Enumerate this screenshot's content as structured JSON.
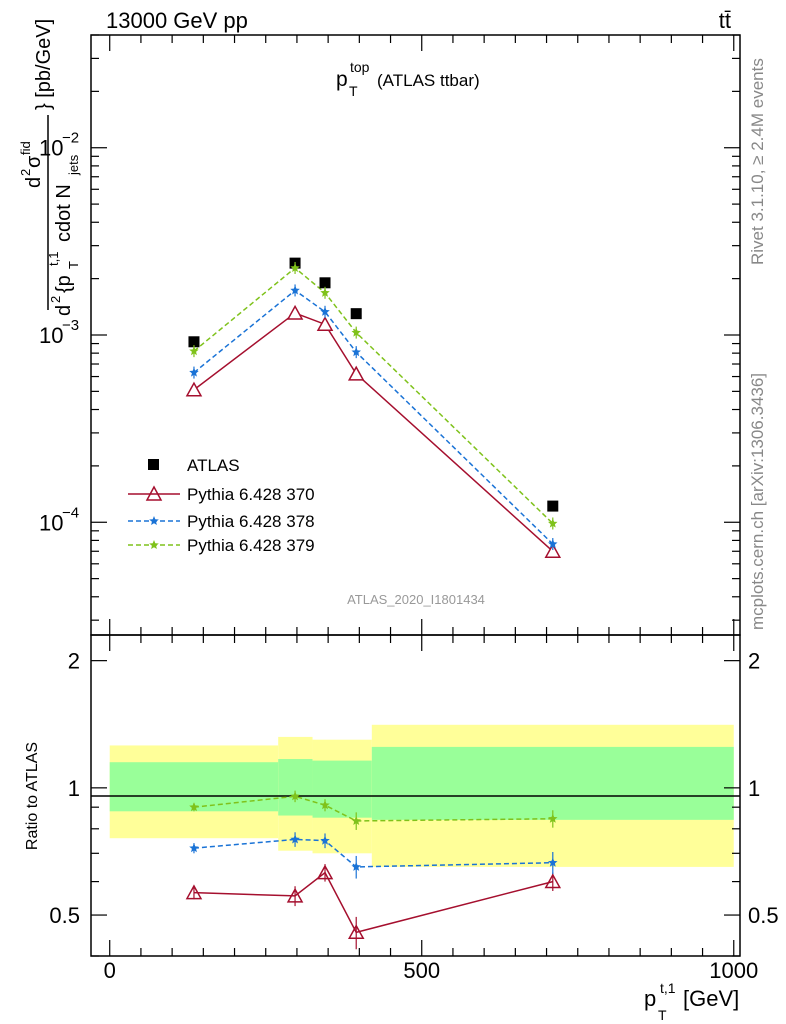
{
  "header": {
    "energy_label": "13000 GeV pp",
    "process_label": "tt̄"
  },
  "side_labels": {
    "rivet": "Rivet 3.1.10, ≥ 2.4M events",
    "mcplots": "mcplots.cern.ch [arXiv:1306.3436]"
  },
  "chart_data": [
    {
      "type": "scatter",
      "title": "p_T^top (ATLAS ttbar)",
      "title_main": "p",
      "title_sup": "top",
      "title_sub": "T",
      "title_rest": "(ATLAS ttbar)",
      "watermark": "ATLAS_2020_I1801434",
      "xlabel": "p_T^t,1 [GeV]",
      "ylabel": "d^2σ^fid / d^2{p_T^t,1 cdot N_jets} [pb/GeV]",
      "ylabel_parts": {
        "numerator_main": "d",
        "numerator_sup": "2",
        "numerator_sigma": "σ",
        "numerator_sigma_sup": "fid",
        "denominator": "d",
        "denominator_sup": "2",
        "denominator_brace": "{p",
        "denominator_pt_sup": "t,1",
        "denominator_pt_sub": "T",
        "denominator_rest": "cdot N",
        "denominator_jets_sub": "jets",
        "unit": "} [pb/GeV]"
      },
      "log_y": true,
      "xlim": [
        -30,
        1010
      ],
      "ylim": [
        2.5e-05,
        0.04
      ],
      "ytick_labels": [
        {
          "base": "10",
          "exp": "−2",
          "value": 0.01
        },
        {
          "base": "10",
          "exp": "−3",
          "value": 0.001
        },
        {
          "base": "10",
          "exp": "−4",
          "value": 0.0001
        }
      ],
      "x": [
        135,
        297,
        345,
        395,
        710
      ],
      "series": [
        {
          "name": "ATLAS",
          "color": "#000000",
          "marker": "square",
          "line": "none",
          "values": [
            0.00092,
            0.00242,
            0.0019,
            0.0013,
            0.000122
          ]
        },
        {
          "name": "Pythia 6.428 370",
          "color": "#a50f2e",
          "marker": "open-triangle",
          "line": "solid",
          "values": [
            0.00051,
            0.00131,
            0.00114,
            0.00062,
            7e-05
          ]
        },
        {
          "name": "Pythia 6.428 378",
          "color": "#1a73d6",
          "marker": "star",
          "line": "dashed",
          "values": [
            0.00063,
            0.00173,
            0.00133,
            0.00081,
            7.65e-05
          ]
        },
        {
          "name": "Pythia 6.428 379",
          "color": "#7fc21b",
          "marker": "star",
          "line": "dashed",
          "values": [
            0.00082,
            0.00228,
            0.00168,
            0.00103,
            9.85e-05
          ]
        }
      ],
      "legend_position": "lower-left"
    },
    {
      "type": "scatter",
      "ylabel": "Ratio to ATLAS",
      "xlabel": "p_T^t,1 [GeV]",
      "xlabel_main": "p",
      "xlabel_sup": "t,1",
      "xlabel_sub": "T",
      "xlabel_unit": "[GeV]",
      "xlim": [
        -30,
        1010
      ],
      "ylim": [
        0.4,
        2.3
      ],
      "x_tick_labels": [
        "0",
        "500",
        "1000"
      ],
      "y_tick_labels": [
        "0.5",
        "1",
        "2"
      ],
      "reference_line": 1,
      "bins": [
        {
          "lo": 0,
          "hi": 270,
          "yellow": [
            0.76,
            1.26
          ],
          "green": [
            0.88,
            1.15
          ]
        },
        {
          "lo": 270,
          "hi": 325,
          "yellow": [
            0.71,
            1.32
          ],
          "green": [
            0.86,
            1.17
          ]
        },
        {
          "lo": 325,
          "hi": 420,
          "yellow": [
            0.7,
            1.3
          ],
          "green": [
            0.85,
            1.16
          ]
        },
        {
          "lo": 420,
          "hi": 1000,
          "yellow": [
            0.65,
            1.41
          ],
          "green": [
            0.84,
            1.25
          ]
        }
      ],
      "x": [
        135,
        297,
        345,
        395,
        710
      ],
      "series": [
        {
          "name": "Pythia 6.428 370",
          "color": "#a50f2e",
          "marker": "open-triangle",
          "line": "solid",
          "values": [
            0.565,
            0.555,
            0.63,
            0.455,
            0.6
          ],
          "errors": [
            0.02,
            0.03,
            0.03,
            0.04,
            0.03
          ]
        },
        {
          "name": "Pythia 6.428 378",
          "color": "#1a73d6",
          "marker": "star",
          "line": "dashed",
          "values": [
            0.72,
            0.755,
            0.75,
            0.65,
            0.665
          ],
          "errors": [
            0.02,
            0.03,
            0.03,
            0.04,
            0.04
          ]
        },
        {
          "name": "Pythia 6.428 379",
          "color": "#7fc21b",
          "marker": "star",
          "line": "dashed",
          "values": [
            0.9,
            0.955,
            0.91,
            0.835,
            0.845
          ],
          "errors": [
            0.02,
            0.03,
            0.03,
            0.04,
            0.04
          ]
        }
      ]
    }
  ]
}
